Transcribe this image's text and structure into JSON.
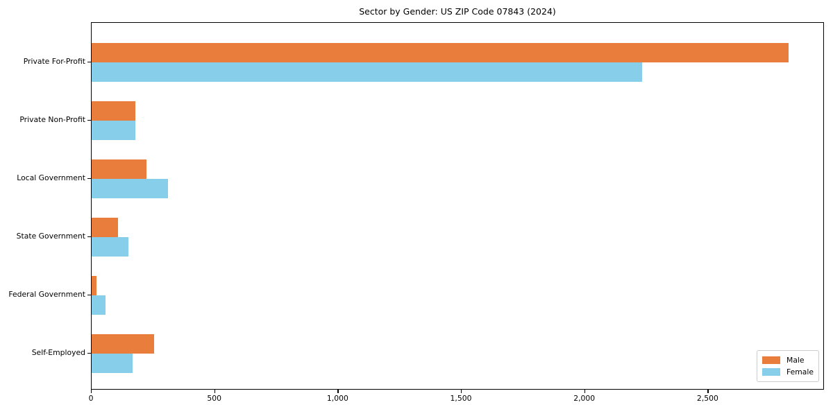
{
  "chart_data": {
    "type": "bar",
    "orientation": "horizontal",
    "title": "Sector by Gender: US ZIP Code 07843 (2024)",
    "categories": [
      "Private For-Profit",
      "Private Non-Profit",
      "Local Government",
      "State Government",
      "Federal Government",
      "Self-Employed"
    ],
    "series": [
      {
        "name": "Male",
        "color": "#E87D3C",
        "values": [
          2825,
          177,
          222,
          107,
          20,
          253
        ]
      },
      {
        "name": "Female",
        "color": "#87CEEB",
        "values": [
          2230,
          177,
          309,
          149,
          56,
          166
        ]
      }
    ],
    "xlabel": "",
    "ylabel": "",
    "xlim": [
      0,
      2966
    ],
    "xticks": [
      0,
      500,
      1000,
      1500,
      2000,
      2500
    ],
    "xtick_labels": [
      "0",
      "500",
      "1,000",
      "1,500",
      "2,000",
      "2,500"
    ],
    "grid": false,
    "legend": {
      "position": "lower right",
      "entries": [
        "Male",
        "Female"
      ]
    },
    "colors": {
      "axis": "#000000",
      "background": "#ffffff",
      "legend_border": "#cccccc"
    }
  }
}
